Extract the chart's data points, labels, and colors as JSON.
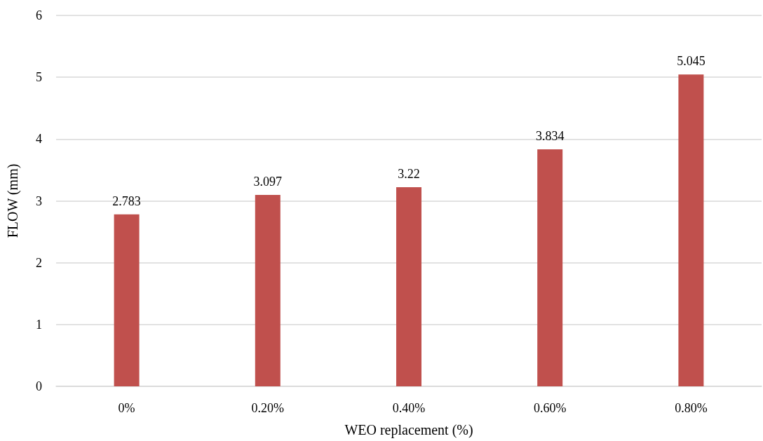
{
  "chart_data": {
    "type": "bar",
    "xlabel": "WEO replacement (%)",
    "ylabel": "FLOW (mm)",
    "categories": [
      "0%",
      "0.20%",
      "0.40%",
      "0.60%",
      "0.80%"
    ],
    "values": [
      2.783,
      3.097,
      3.22,
      3.834,
      5.045
    ],
    "color": "#c0504d",
    "ylim": [
      0,
      6
    ],
    "yticks": [
      0,
      1,
      2,
      3,
      4,
      5,
      6
    ],
    "grid": "y",
    "data_labels": true
  }
}
